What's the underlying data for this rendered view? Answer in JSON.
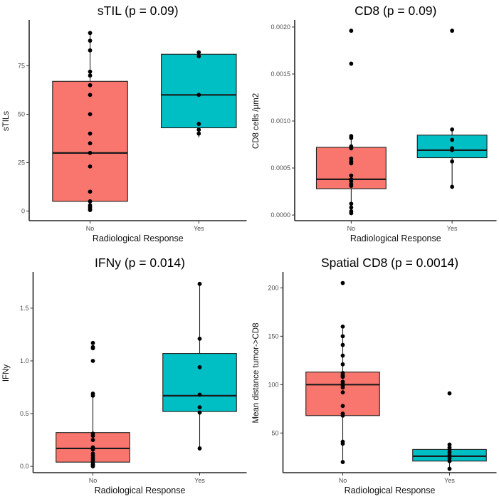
{
  "figure": {
    "background": "#ffffff",
    "point_color": "#000000",
    "axis_color": "#262626",
    "tick_label_color": "#4d4d4d",
    "title_color": "#000000",
    "group_colors": {
      "No": "#F8766D",
      "Yes": "#00BFC4"
    }
  },
  "chart_data": [
    {
      "type": "boxplot",
      "id": "panel-stil",
      "title": "sTIL (p = 0.09)",
      "ylabel": "sTILs",
      "xlabel": "Radiological Response",
      "categories": [
        "No",
        "Yes"
      ],
      "ylim": [
        -5,
        98
      ],
      "ytick_values": [
        0,
        25,
        50,
        75
      ],
      "ytick_labels": [
        "0",
        "25",
        "50",
        "75"
      ],
      "grid": false,
      "legend": "none",
      "groups": [
        {
          "category": "No",
          "color": "#F8766D",
          "box": {
            "q1": 5,
            "median": 30,
            "q3": 67,
            "whisker_low": 1,
            "whisker_high": 92
          },
          "points": [
            92,
            88,
            83,
            72,
            70,
            65,
            60,
            50,
            40,
            35,
            30,
            23,
            10,
            5,
            3,
            2,
            1,
            0.5
          ]
        },
        {
          "category": "Yes",
          "color": "#00BFC4",
          "box": {
            "q1": 43,
            "median": 60,
            "q3": 81,
            "whisker_low": 38,
            "whisker_high": 82
          },
          "points": [
            82,
            80,
            60,
            45,
            42,
            40
          ]
        }
      ]
    },
    {
      "type": "boxplot",
      "id": "panel-cd8",
      "title": "CD8 (p = 0.09)",
      "ylabel": "CD8 cells /µm2",
      "xlabel": "Radiological Response",
      "categories": [
        "No",
        "Yes"
      ],
      "ylim": [
        -6e-05,
        0.00206
      ],
      "ytick_values": [
        0.0,
        0.0005,
        0.001,
        0.0015,
        0.002
      ],
      "ytick_labels": [
        "0.0000",
        "0.0005",
        "0.0010",
        "0.0015",
        "0.0020"
      ],
      "grid": false,
      "legend": "none",
      "groups": [
        {
          "category": "No",
          "color": "#F8766D",
          "box": {
            "q1": 0.00028,
            "median": 0.00038,
            "q3": 0.00072,
            "whisker_low": 2e-05,
            "whisker_high": 0.00084
          },
          "points": [
            0.00196,
            0.00161,
            0.00084,
            0.00082,
            0.00073,
            0.00071,
            0.0006,
            0.00057,
            0.00055,
            0.00042,
            0.00038,
            0.00036,
            0.00033,
            0.00031,
            0.00012,
            8e-05,
            4e-05,
            2e-05
          ]
        },
        {
          "category": "Yes",
          "color": "#00BFC4",
          "box": {
            "q1": 0.00061,
            "median": 0.00069,
            "q3": 0.00085,
            "whisker_low": 0.0003,
            "whisker_high": 0.00091
          },
          "points": [
            0.00196,
            0.00091,
            0.0008,
            0.00071,
            0.00069,
            0.00057,
            0.0003
          ]
        }
      ]
    },
    {
      "type": "boxplot",
      "id": "panel-ifny",
      "title": "IFNy (p = 0.014)",
      "ylabel": "IFNy",
      "xlabel": "Radiological Response",
      "categories": [
        "No",
        "Yes"
      ],
      "ylim": [
        -0.06,
        1.83
      ],
      "ytick_values": [
        0.0,
        0.5,
        1.0,
        1.5
      ],
      "ytick_labels": [
        "0.0",
        "0.5",
        "1.0",
        "1.5"
      ],
      "grid": false,
      "legend": "none",
      "groups": [
        {
          "category": "No",
          "color": "#F8766D",
          "box": {
            "q1": 0.04,
            "median": 0.17,
            "q3": 0.32,
            "whisker_low": 0.0,
            "whisker_high": 0.68
          },
          "points": [
            1.17,
            1.13,
            1.12,
            1.0,
            0.69,
            0.67,
            0.31,
            0.29,
            0.25,
            0.18,
            0.16,
            0.12,
            0.1,
            0.08,
            0.06,
            0.04,
            0.02,
            0.01,
            0.0
          ]
        },
        {
          "category": "Yes",
          "color": "#00BFC4",
          "box": {
            "q1": 0.52,
            "median": 0.67,
            "q3": 1.07,
            "whisker_low": 0.17,
            "whisker_high": 1.73
          },
          "points": [
            1.73,
            1.21,
            0.94,
            0.68,
            0.56,
            0.51,
            0.17
          ]
        }
      ]
    },
    {
      "type": "boxplot",
      "id": "panel-spatial-cd8",
      "title": "Spatial CD8 (p = 0.0014)",
      "ylabel": "Mean distance tumor->CD8",
      "xlabel": "Radiological Response",
      "categories": [
        "No",
        "Yes"
      ],
      "ylim": [
        9,
        215
      ],
      "ytick_values": [
        50,
        100,
        150,
        200
      ],
      "ytick_labels": [
        "50",
        "100",
        "150",
        "200"
      ],
      "grid": false,
      "legend": "none",
      "groups": [
        {
          "category": "No",
          "color": "#F8766D",
          "box": {
            "q1": 68,
            "median": 100,
            "q3": 113,
            "whisker_low": 20,
            "whisker_high": 160
          },
          "points": [
            205,
            160,
            150,
            141,
            130,
            121,
            112,
            110,
            109,
            108,
            103,
            101,
            99,
            97,
            92,
            78,
            70,
            68,
            41,
            39,
            20
          ]
        },
        {
          "category": "Yes",
          "color": "#00BFC4",
          "box": {
            "q1": 21,
            "median": 26,
            "q3": 33,
            "whisker_low": 13,
            "whisker_high": 38
          },
          "points": [
            91,
            38,
            35,
            33,
            30,
            27,
            24,
            21,
            13
          ]
        }
      ]
    }
  ]
}
